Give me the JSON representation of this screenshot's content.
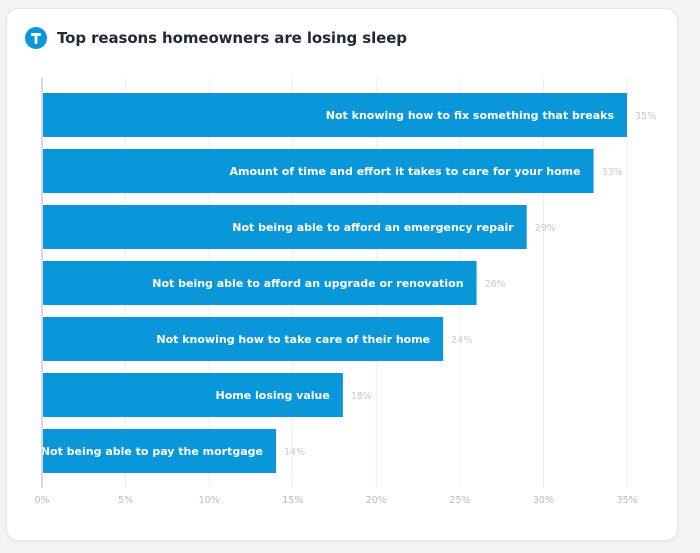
{
  "header": {
    "title": "Top reasons homeowners are losing sleep",
    "logo_icon": "thumbtack-logo-icon"
  },
  "colors": {
    "bar": "#0a97d9",
    "bar_label": "#ffffff",
    "value_label": "#c7cbd1",
    "grid": "#eceef1",
    "axis": "#b9bdc4",
    "logo": "#0a97d9"
  },
  "chart_data": {
    "type": "bar",
    "orientation": "horizontal",
    "title": "Top reasons homeowners are losing sleep",
    "categories": [
      "Not knowing how to fix something that breaks",
      "Amount of time and effort it takes to care for your home",
      "Not being able to afford an emergency repair",
      "Not being able to afford an upgrade or renovation",
      "Not knowing how to take care of their home",
      "Home losing value",
      "Not being able to pay the mortgage"
    ],
    "values": [
      35,
      33,
      29,
      26,
      24,
      18,
      14
    ],
    "value_labels": [
      "35%",
      "33%",
      "29%",
      "26%",
      "24%",
      "18%",
      "14%"
    ],
    "x_ticks": [
      "0%",
      "5%",
      "10%",
      "15%",
      "20%",
      "25%",
      "30%",
      "35%"
    ],
    "xlim": [
      0,
      35
    ],
    "xlabel": "",
    "ylabel": "",
    "grid": true
  }
}
